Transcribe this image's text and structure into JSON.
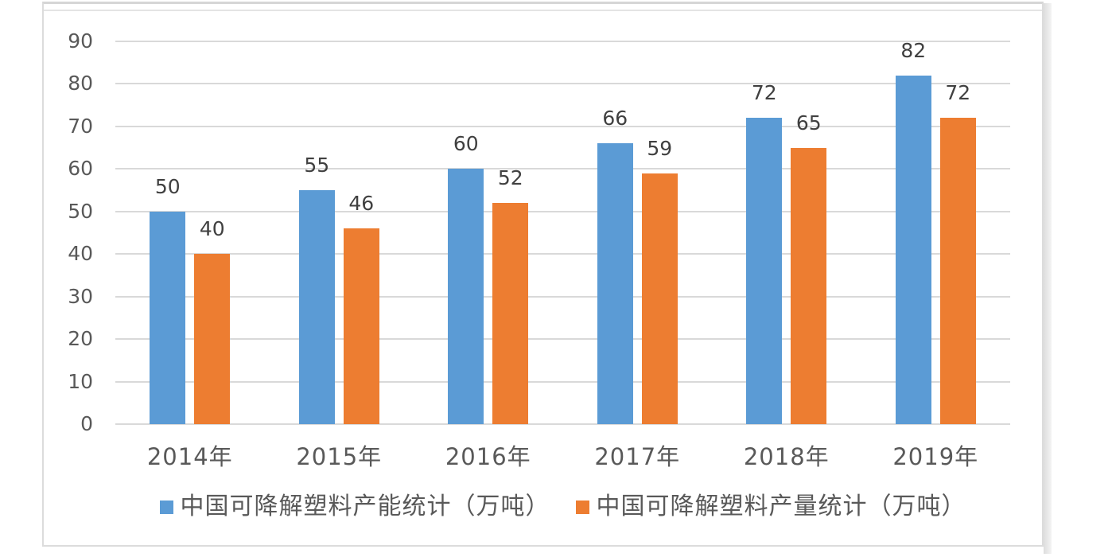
{
  "chart_data": {
    "type": "bar",
    "title": "",
    "categories": [
      "2014年",
      "2015年",
      "2016年",
      "2017年",
      "2018年",
      "2019年"
    ],
    "series": [
      {
        "name": "中国可降解塑料产能统计（万吨）",
        "color": "#5B9BD5",
        "values": [
          50,
          55,
          60,
          66,
          72,
          82
        ]
      },
      {
        "name": "中国可降解塑料产量统计（万吨）",
        "color": "#ED7D31",
        "values": [
          40,
          46,
          52,
          59,
          65,
          72
        ]
      }
    ],
    "xlabel": "",
    "ylabel": "",
    "ylim": [
      0,
      90
    ],
    "yticks": [
      0,
      10,
      20,
      30,
      40,
      50,
      60,
      70,
      80,
      90
    ],
    "grid": true,
    "legend_position": "bottom",
    "data_labels": "outside-end"
  },
  "style": {
    "bar_blue": "#5B9BD5",
    "bar_orange": "#ED7D31",
    "gridline_color": "#D9D9D9",
    "axis_text_color": "#595959",
    "data_label_color": "#404040",
    "card_border_color": "#DCDCDC",
    "background": "#FFFFFF"
  }
}
